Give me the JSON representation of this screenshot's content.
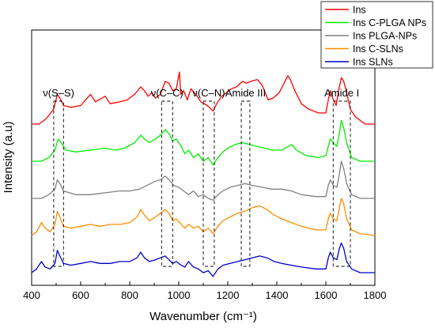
{
  "chart_data": {
    "type": "line",
    "title": "",
    "xlabel": "Wavenumber (cm⁻¹)",
    "ylabel": "Intensity (a.u)",
    "xlim": [
      400,
      1800
    ],
    "x_ticks": [
      "400",
      "600",
      "800",
      "1000",
      "1200",
      "1400",
      "1600",
      "1800"
    ],
    "y_ticks_shown": false,
    "grid": false,
    "legend_position": "top-right",
    "series": [
      {
        "name": "Ins",
        "color": "#ff0000",
        "points": [
          [
            400,
            0.8
          ],
          [
            430,
            0.8
          ],
          [
            460,
            0.83
          ],
          [
            490,
            0.88
          ],
          [
            505,
            0.96
          ],
          [
            515,
            0.94
          ],
          [
            530,
            0.9
          ],
          [
            560,
            0.89
          ],
          [
            600,
            0.9
          ],
          [
            620,
            0.93
          ],
          [
            640,
            0.96
          ],
          [
            660,
            0.92
          ],
          [
            700,
            0.95
          ],
          [
            720,
            0.91
          ],
          [
            760,
            0.92
          ],
          [
            790,
            0.93
          ],
          [
            820,
            0.96
          ],
          [
            845,
            1.0
          ],
          [
            860,
            0.98
          ],
          [
            875,
            0.95
          ],
          [
            890,
            0.97
          ],
          [
            905,
            0.94
          ],
          [
            925,
            0.96
          ],
          [
            945,
            1.03
          ],
          [
            960,
            1.02
          ],
          [
            975,
            0.98
          ],
          [
            990,
            0.99
          ],
          [
            1003,
            1.08
          ],
          [
            1008,
            0.96
          ],
          [
            1020,
            0.98
          ],
          [
            1035,
            0.93
          ],
          [
            1050,
            0.99
          ],
          [
            1070,
            0.96
          ],
          [
            1090,
            0.92
          ],
          [
            1105,
            0.91
          ],
          [
            1125,
            0.89
          ],
          [
            1140,
            0.87
          ],
          [
            1155,
            0.91
          ],
          [
            1175,
            0.95
          ],
          [
            1195,
            0.97
          ],
          [
            1215,
            0.99
          ],
          [
            1235,
            1.0
          ],
          [
            1260,
            1.03
          ],
          [
            1275,
            1.02
          ],
          [
            1295,
            1.03
          ],
          [
            1320,
            1.04
          ],
          [
            1340,
            1.01
          ],
          [
            1365,
            0.93
          ],
          [
            1385,
            0.94
          ],
          [
            1410,
            0.97
          ],
          [
            1445,
            1.06
          ],
          [
            1455,
            1.04
          ],
          [
            1470,
            0.99
          ],
          [
            1500,
            0.91
          ],
          [
            1530,
            0.88
          ],
          [
            1570,
            0.86
          ],
          [
            1600,
            0.86
          ],
          [
            1610,
            0.93
          ],
          [
            1618,
            0.98
          ],
          [
            1628,
            0.94
          ],
          [
            1642,
            0.9
          ],
          [
            1652,
            0.98
          ],
          [
            1663,
            1.05
          ],
          [
            1673,
            1.03
          ],
          [
            1683,
            0.98
          ],
          [
            1700,
            0.88
          ],
          [
            1720,
            0.84
          ],
          [
            1760,
            0.8
          ],
          [
            1800,
            0.8
          ]
        ]
      },
      {
        "name": "Ins C-PLGA NPs",
        "color": "#00ee00",
        "points": [
          [
            400,
            0.6
          ],
          [
            440,
            0.6
          ],
          [
            470,
            0.62
          ],
          [
            495,
            0.66
          ],
          [
            508,
            0.72
          ],
          [
            520,
            0.7
          ],
          [
            540,
            0.66
          ],
          [
            580,
            0.65
          ],
          [
            640,
            0.66
          ],
          [
            700,
            0.67
          ],
          [
            740,
            0.66
          ],
          [
            780,
            0.67
          ],
          [
            820,
            0.7
          ],
          [
            845,
            0.74
          ],
          [
            860,
            0.72
          ],
          [
            880,
            0.7
          ],
          [
            905,
            0.72
          ],
          [
            925,
            0.74
          ],
          [
            945,
            0.77
          ],
          [
            960,
            0.75
          ],
          [
            975,
            0.71
          ],
          [
            990,
            0.72
          ],
          [
            1010,
            0.68
          ],
          [
            1025,
            0.64
          ],
          [
            1040,
            0.66
          ],
          [
            1060,
            0.62
          ],
          [
            1080,
            0.64
          ],
          [
            1100,
            0.6
          ],
          [
            1120,
            0.62
          ],
          [
            1140,
            0.58
          ],
          [
            1160,
            0.62
          ],
          [
            1180,
            0.65
          ],
          [
            1200,
            0.67
          ],
          [
            1230,
            0.69
          ],
          [
            1260,
            0.7
          ],
          [
            1290,
            0.69
          ],
          [
            1320,
            0.68
          ],
          [
            1350,
            0.67
          ],
          [
            1380,
            0.66
          ],
          [
            1420,
            0.66
          ],
          [
            1460,
            0.69
          ],
          [
            1480,
            0.66
          ],
          [
            1520,
            0.63
          ],
          [
            1570,
            0.62
          ],
          [
            1600,
            0.63
          ],
          [
            1610,
            0.68
          ],
          [
            1618,
            0.72
          ],
          [
            1630,
            0.7
          ],
          [
            1645,
            0.68
          ],
          [
            1655,
            0.75
          ],
          [
            1663,
            0.82
          ],
          [
            1673,
            0.78
          ],
          [
            1685,
            0.7
          ],
          [
            1705,
            0.62
          ],
          [
            1740,
            0.6
          ],
          [
            1800,
            0.6
          ]
        ]
      },
      {
        "name": "Ins PLGA-NPs",
        "color": "#808080",
        "points": [
          [
            400,
            0.4
          ],
          [
            440,
            0.4
          ],
          [
            470,
            0.42
          ],
          [
            495,
            0.45
          ],
          [
            505,
            0.5
          ],
          [
            515,
            0.48
          ],
          [
            530,
            0.44
          ],
          [
            580,
            0.42
          ],
          [
            640,
            0.42
          ],
          [
            700,
            0.43
          ],
          [
            760,
            0.44
          ],
          [
            800,
            0.44
          ],
          [
            840,
            0.45
          ],
          [
            870,
            0.47
          ],
          [
            900,
            0.49
          ],
          [
            925,
            0.5
          ],
          [
            945,
            0.52
          ],
          [
            960,
            0.5
          ],
          [
            980,
            0.47
          ],
          [
            1000,
            0.46
          ],
          [
            1020,
            0.44
          ],
          [
            1040,
            0.42
          ],
          [
            1060,
            0.44
          ],
          [
            1080,
            0.41
          ],
          [
            1100,
            0.42
          ],
          [
            1120,
            0.4
          ],
          [
            1140,
            0.39
          ],
          [
            1160,
            0.42
          ],
          [
            1180,
            0.44
          ],
          [
            1210,
            0.46
          ],
          [
            1240,
            0.47
          ],
          [
            1270,
            0.48
          ],
          [
            1300,
            0.47
          ],
          [
            1340,
            0.46
          ],
          [
            1380,
            0.45
          ],
          [
            1420,
            0.45
          ],
          [
            1460,
            0.44
          ],
          [
            1500,
            0.42
          ],
          [
            1560,
            0.41
          ],
          [
            1600,
            0.41
          ],
          [
            1610,
            0.47
          ],
          [
            1618,
            0.5
          ],
          [
            1630,
            0.47
          ],
          [
            1645,
            0.46
          ],
          [
            1655,
            0.53
          ],
          [
            1663,
            0.6
          ],
          [
            1673,
            0.56
          ],
          [
            1685,
            0.48
          ],
          [
            1705,
            0.42
          ],
          [
            1740,
            0.4
          ],
          [
            1800,
            0.4
          ]
        ]
      },
      {
        "name": "Ins C-SLNs",
        "color": "#ff8c00",
        "points": [
          [
            400,
            0.2
          ],
          [
            420,
            0.22
          ],
          [
            440,
            0.27
          ],
          [
            455,
            0.24
          ],
          [
            475,
            0.22
          ],
          [
            495,
            0.26
          ],
          [
            505,
            0.33
          ],
          [
            515,
            0.3
          ],
          [
            530,
            0.25
          ],
          [
            560,
            0.24
          ],
          [
            600,
            0.25
          ],
          [
            640,
            0.26
          ],
          [
            680,
            0.25
          ],
          [
            720,
            0.26
          ],
          [
            760,
            0.26
          ],
          [
            800,
            0.27
          ],
          [
            830,
            0.3
          ],
          [
            845,
            0.34
          ],
          [
            860,
            0.31
          ],
          [
            880,
            0.28
          ],
          [
            905,
            0.3
          ],
          [
            925,
            0.32
          ],
          [
            945,
            0.34
          ],
          [
            960,
            0.32
          ],
          [
            975,
            0.28
          ],
          [
            990,
            0.29
          ],
          [
            1010,
            0.26
          ],
          [
            1025,
            0.24
          ],
          [
            1040,
            0.26
          ],
          [
            1060,
            0.24
          ],
          [
            1080,
            0.25
          ],
          [
            1100,
            0.22
          ],
          [
            1120,
            0.24
          ],
          [
            1140,
            0.21
          ],
          [
            1160,
            0.25
          ],
          [
            1180,
            0.28
          ],
          [
            1210,
            0.3
          ],
          [
            1240,
            0.32
          ],
          [
            1270,
            0.33
          ],
          [
            1300,
            0.35
          ],
          [
            1330,
            0.36
          ],
          [
            1360,
            0.34
          ],
          [
            1390,
            0.31
          ],
          [
            1420,
            0.29
          ],
          [
            1460,
            0.27
          ],
          [
            1500,
            0.25
          ],
          [
            1560,
            0.23
          ],
          [
            1600,
            0.23
          ],
          [
            1610,
            0.29
          ],
          [
            1618,
            0.32
          ],
          [
            1630,
            0.29
          ],
          [
            1645,
            0.28
          ],
          [
            1655,
            0.35
          ],
          [
            1663,
            0.4
          ],
          [
            1673,
            0.37
          ],
          [
            1685,
            0.29
          ],
          [
            1705,
            0.23
          ],
          [
            1740,
            0.21
          ],
          [
            1800,
            0.2
          ]
        ]
      },
      {
        "name": "Ins SLNs",
        "color": "#0000cc",
        "points": [
          [
            400,
            0.0
          ],
          [
            420,
            0.02
          ],
          [
            440,
            0.06
          ],
          [
            455,
            0.03
          ],
          [
            475,
            0.02
          ],
          [
            495,
            0.05
          ],
          [
            505,
            0.12
          ],
          [
            515,
            0.09
          ],
          [
            530,
            0.05
          ],
          [
            560,
            0.04
          ],
          [
            600,
            0.05
          ],
          [
            640,
            0.06
          ],
          [
            680,
            0.05
          ],
          [
            720,
            0.05
          ],
          [
            760,
            0.06
          ],
          [
            800,
            0.06
          ],
          [
            830,
            0.08
          ],
          [
            845,
            0.11
          ],
          [
            860,
            0.08
          ],
          [
            880,
            0.06
          ],
          [
            905,
            0.07
          ],
          [
            925,
            0.08
          ],
          [
            945,
            0.09
          ],
          [
            960,
            0.07
          ],
          [
            975,
            0.05
          ],
          [
            990,
            0.06
          ],
          [
            1010,
            0.04
          ],
          [
            1025,
            0.03
          ],
          [
            1040,
            0.06
          ],
          [
            1060,
            0.03
          ],
          [
            1080,
            0.02
          ],
          [
            1100,
            0.0
          ],
          [
            1120,
            0.01
          ],
          [
            1140,
            -0.02
          ],
          [
            1160,
            0.02
          ],
          [
            1180,
            0.04
          ],
          [
            1210,
            0.05
          ],
          [
            1240,
            0.06
          ],
          [
            1270,
            0.07
          ],
          [
            1300,
            0.08
          ],
          [
            1330,
            0.09
          ],
          [
            1360,
            0.08
          ],
          [
            1390,
            0.06
          ],
          [
            1420,
            0.05
          ],
          [
            1460,
            0.04
          ],
          [
            1500,
            0.03
          ],
          [
            1560,
            0.02
          ],
          [
            1600,
            0.02
          ],
          [
            1610,
            0.08
          ],
          [
            1618,
            0.11
          ],
          [
            1630,
            0.08
          ],
          [
            1645,
            0.07
          ],
          [
            1655,
            0.13
          ],
          [
            1663,
            0.16
          ],
          [
            1673,
            0.13
          ],
          [
            1685,
            0.06
          ],
          [
            1705,
            0.02
          ],
          [
            1740,
            0.0
          ],
          [
            1800,
            0.0
          ]
        ]
      }
    ],
    "annotations": [
      {
        "label": "ν(S–S)",
        "box_x": [
          490,
          530
        ]
      },
      {
        "label": "ν(C–C)",
        "box_x": [
          930,
          975
        ]
      },
      {
        "label": "ν(C–N)",
        "box_x": [
          1100,
          1145
        ]
      },
      {
        "label": "Amide III",
        "box_x": [
          1255,
          1290
        ]
      },
      {
        "label": "Amide I",
        "box_x": [
          1630,
          1700
        ]
      }
    ]
  }
}
